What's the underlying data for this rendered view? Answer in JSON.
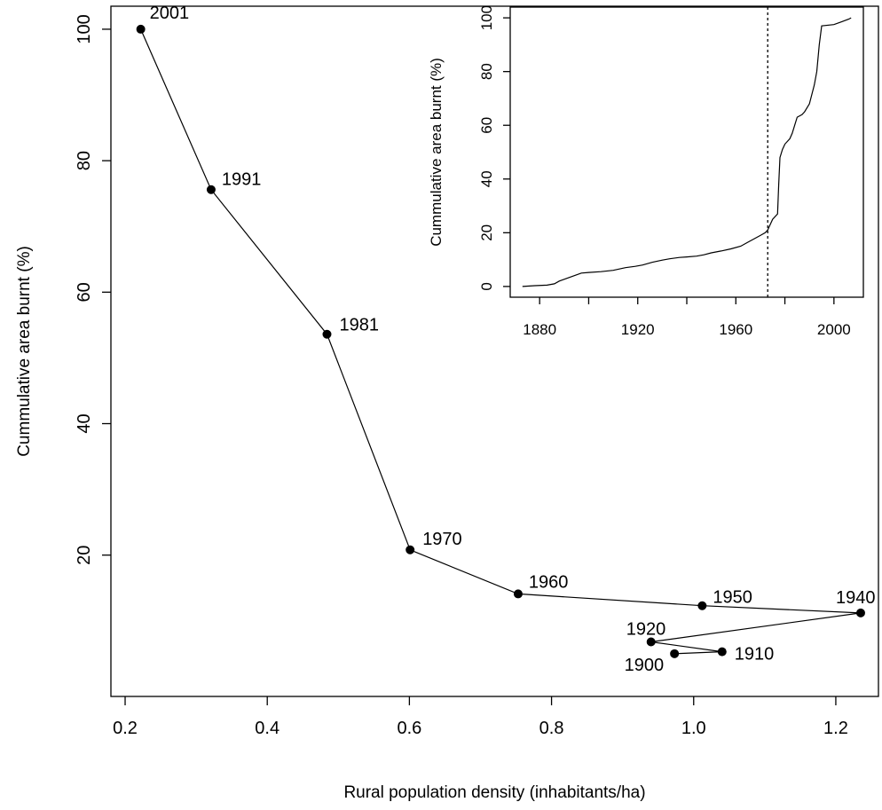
{
  "chart_data": [
    {
      "type": "line",
      "title": "",
      "xlabel": "Rural population density (inhabitants/ha)",
      "ylabel": "Cummulative area burnt (%)",
      "xlim": [
        0.18,
        1.26
      ],
      "ylim": [
        -1.5,
        103.5
      ],
      "xticks": [
        "0.2",
        "0.4",
        "0.6",
        "0.8",
        "1.0",
        "1.2"
      ],
      "yticks": [
        "20",
        "40",
        "60",
        "80",
        "100"
      ],
      "grid": false,
      "markers": "filled-circle",
      "points": [
        {
          "label": "1900",
          "x": 0.973,
          "y": 5.0
        },
        {
          "label": "1910",
          "x": 1.04,
          "y": 5.3
        },
        {
          "label": "1920",
          "x": 0.94,
          "y": 6.8
        },
        {
          "label": "1940",
          "x": 1.235,
          "y": 11.2
        },
        {
          "label": "1950",
          "x": 1.012,
          "y": 12.3
        },
        {
          "label": "1960",
          "x": 0.753,
          "y": 14.1
        },
        {
          "label": "1970",
          "x": 0.601,
          "y": 20.8
        },
        {
          "label": "1981",
          "x": 0.484,
          "y": 53.6
        },
        {
          "label": "1991",
          "x": 0.321,
          "y": 75.6
        },
        {
          "label": "2001",
          "x": 0.222,
          "y": 100.0
        }
      ]
    },
    {
      "type": "line",
      "title": "",
      "xlabel": "",
      "ylabel": "Cummulative area burnt (%)",
      "xlim": [
        1868,
        2012
      ],
      "ylim": [
        -4,
        104
      ],
      "xticks": [
        "1880",
        "1920",
        "1960",
        "2000"
      ],
      "yticks": [
        "0",
        "20",
        "40",
        "60",
        "80",
        "100"
      ],
      "grid": false,
      "vline": {
        "x": 1973,
        "style": "dotted"
      },
      "series": [
        {
          "x": [
            1873,
            1878,
            1883,
            1886,
            1888,
            1891,
            1894,
            1897,
            1900,
            1905,
            1910,
            1915,
            1919,
            1922,
            1926,
            1930,
            1933,
            1937,
            1940,
            1944,
            1947,
            1950,
            1954,
            1958,
            1962,
            1965,
            1968,
            1970,
            1972,
            1973,
            1975,
            1977,
            1977.5,
            1978,
            1979,
            1980,
            1982,
            1983,
            1984,
            1985,
            1987,
            1988,
            1990,
            1992,
            1993,
            1994,
            1995,
            2000,
            2003,
            2006,
            2007
          ],
          "y": [
            0,
            0.3,
            0.5,
            1.0,
            2.0,
            3.0,
            4.0,
            5.0,
            5.2,
            5.5,
            6.0,
            7.0,
            7.5,
            8.0,
            9.0,
            9.8,
            10.3,
            10.8,
            11.0,
            11.3,
            11.8,
            12.5,
            13.2,
            14.0,
            15.0,
            16.5,
            18.0,
            19.0,
            20.0,
            21.0,
            25.0,
            27.0,
            38.0,
            48.0,
            51.0,
            53.0,
            55.0,
            57.0,
            60.0,
            63.0,
            64.0,
            65.0,
            68.0,
            75.0,
            80.0,
            90.0,
            97.0,
            97.5,
            98.5,
            99.5,
            100.0
          ]
        }
      ]
    }
  ]
}
